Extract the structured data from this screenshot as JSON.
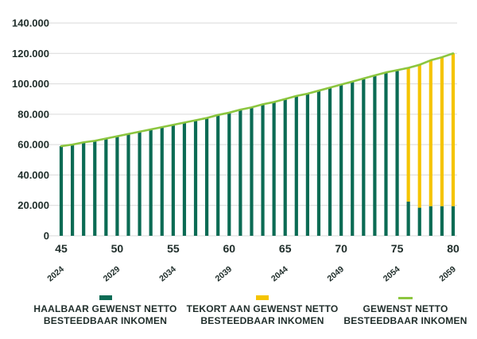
{
  "chart_data": {
    "type": "bar",
    "x": [
      45,
      46,
      47,
      48,
      49,
      50,
      51,
      52,
      53,
      54,
      55,
      56,
      57,
      58,
      59,
      60,
      61,
      62,
      63,
      64,
      65,
      66,
      67,
      68,
      69,
      70,
      71,
      72,
      73,
      74,
      75,
      76,
      77,
      78,
      79,
      80
    ],
    "series": [
      {
        "name": "HAALBAAR GEWENST NETTO BESTEEDBAAR INKOMEN",
        "kind": "bar",
        "stack": "inkomen",
        "color": "#0b6b54",
        "values": [
          59000,
          60000,
          61500,
          62500,
          64000,
          65500,
          67000,
          68500,
          70000,
          71500,
          73000,
          74500,
          76000,
          77500,
          79500,
          81000,
          83000,
          84500,
          86500,
          88000,
          90000,
          92000,
          93500,
          95500,
          97500,
          99500,
          101500,
          103500,
          105500,
          107500,
          108500,
          22500,
          18500,
          19500,
          19500,
          19500
        ]
      },
      {
        "name": "TEKORT AAN GEWENST NETTO BESTEEDBAAR INKOMEN",
        "kind": "bar",
        "stack": "inkomen",
        "color": "#f5c400",
        "values": [
          0,
          0,
          0,
          0,
          0,
          0,
          0,
          0,
          0,
          0,
          0,
          0,
          0,
          0,
          0,
          0,
          0,
          0,
          0,
          0,
          0,
          0,
          0,
          0,
          0,
          0,
          0,
          0,
          0,
          0,
          0,
          88000,
          94500,
          96000,
          98000,
          100500
        ]
      },
      {
        "name": "GEWENST NETTO BESTEEDBAAR INKOMEN",
        "kind": "line",
        "color": "#8cc63f",
        "values": [
          59000,
          60000,
          61500,
          62500,
          64000,
          65500,
          67000,
          68500,
          70000,
          71500,
          73000,
          74500,
          76000,
          77500,
          79500,
          81000,
          83000,
          84500,
          86500,
          88000,
          90000,
          92000,
          93500,
          95500,
          97500,
          99500,
          101500,
          103500,
          105500,
          107500,
          109000,
          110500,
          112500,
          115500,
          117500,
          120000
        ]
      }
    ],
    "x_ticks": [
      "45",
      "50",
      "55",
      "60",
      "65",
      "70",
      "75",
      "80"
    ],
    "x_tick_values": [
      45,
      50,
      55,
      60,
      65,
      70,
      75,
      80
    ],
    "x_year_labels": [
      "2024",
      "2029",
      "2034",
      "2039",
      "2044",
      "2049",
      "2054",
      "2059"
    ],
    "y_ticks": [
      "0",
      "20.000",
      "40.000",
      "60.000",
      "80.000",
      "100.000",
      "120.000",
      "140.000"
    ],
    "y_tick_values": [
      0,
      20000,
      40000,
      60000,
      80000,
      100000,
      120000,
      140000
    ],
    "ylim": [
      0,
      140000
    ],
    "title": "",
    "xlabel": "",
    "ylabel": "",
    "grid": "horizontal",
    "legend_position": "bottom"
  },
  "legend": {
    "items": [
      {
        "line1": "HAALBAAR GEWENST NETTO",
        "line2": "BESTEEDBAAR INKOMEN",
        "color": "#0b6b54",
        "kind": "bar"
      },
      {
        "line1": "TEKORT AAN GEWENST NETTO",
        "line2": "BESTEEDBAAR INKOMEN",
        "color": "#f5c400",
        "kind": "bar"
      },
      {
        "line1": "GEWENST NETTO",
        "line2": "BESTEEDBAAR INKOMEN",
        "color": "#8cc63f",
        "kind": "line"
      }
    ]
  }
}
